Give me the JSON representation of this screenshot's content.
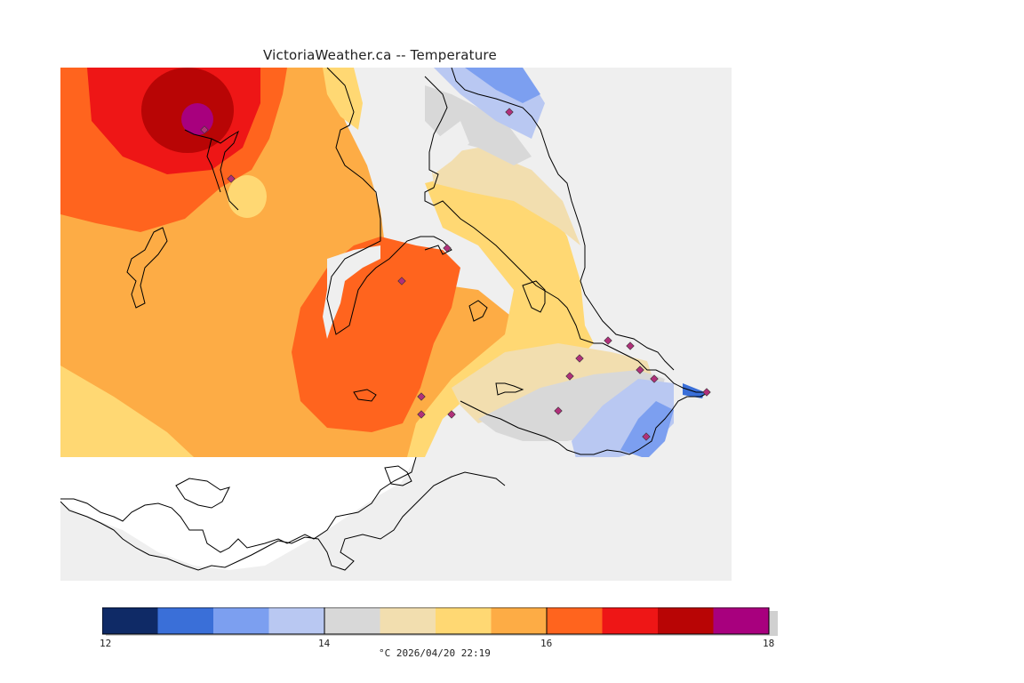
{
  "title": "VictoriaWeather.ca -- Temperature",
  "map": {
    "variable": "Temperature",
    "background_color": "#efefef",
    "land_outside_data_color": "#ffffff",
    "coastline_color": "#000000",
    "station_marker_color": "#b0307a"
  },
  "legend": {
    "tick_labels": [
      "12",
      "14",
      "16",
      "18"
    ],
    "unit_and_time": "°C  2026/04/20 22:19",
    "bins": [
      {
        "from": 12.0,
        "to": 12.5,
        "color": "#0f2a66"
      },
      {
        "from": 12.5,
        "to": 13.0,
        "color": "#3a6fd8"
      },
      {
        "from": 13.0,
        "to": 13.5,
        "color": "#7c9ff0"
      },
      {
        "from": 13.5,
        "to": 14.0,
        "color": "#b9c8f2"
      },
      {
        "from": 14.0,
        "to": 14.5,
        "color": "#d8d8d8"
      },
      {
        "from": 14.5,
        "to": 15.0,
        "color": "#f2deaf"
      },
      {
        "from": 15.0,
        "to": 15.5,
        "color": "#ffd873"
      },
      {
        "from": 15.5,
        "to": 16.0,
        "color": "#fdac45"
      },
      {
        "from": 16.0,
        "to": 16.5,
        "color": "#ff641e"
      },
      {
        "from": 16.5,
        "to": 17.0,
        "color": "#ee1616"
      },
      {
        "from": 17.0,
        "to": 17.5,
        "color": "#b80505"
      },
      {
        "from": 17.5,
        "to": 18.0,
        "color": "#a8007e"
      }
    ]
  }
}
